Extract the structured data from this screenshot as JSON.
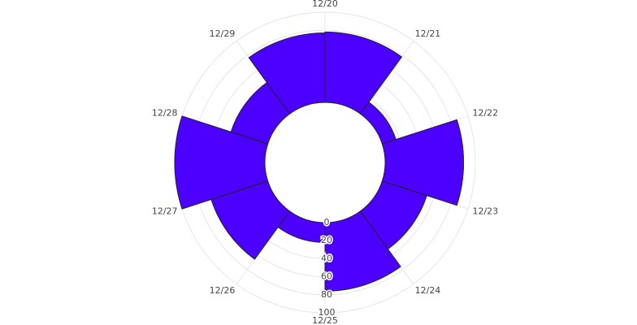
{
  "chart_data": {
    "type": "polar-bar",
    "categories": [
      "12/20",
      "12/21",
      "12/22",
      "12/23",
      "12/24",
      "12/25",
      "12/26",
      "12/27",
      "12/28",
      "12/29"
    ],
    "values": [
      78,
      16,
      87,
      52,
      76,
      22,
      66,
      100,
      43,
      77
    ],
    "color": "#4c00ff",
    "ylim": [
      0,
      100
    ],
    "yticks": [
      0,
      20,
      40,
      60,
      80,
      100
    ],
    "grid": true
  }
}
